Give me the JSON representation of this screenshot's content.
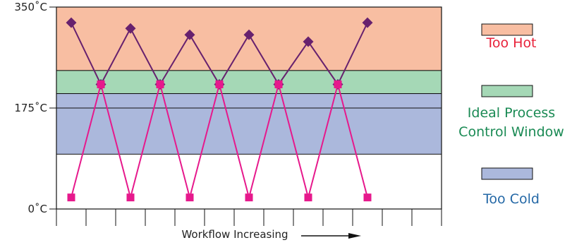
{
  "chart_data": {
    "type": "line",
    "title": "",
    "xlabel": "Workflow Increasing",
    "ylabel": "",
    "ylim": [
      0,
      350
    ],
    "yticks": [
      {
        "value": 350,
        "label": "350˚C"
      },
      {
        "value": 175,
        "label": "175˚C"
      },
      {
        "value": 0,
        "label": "0˚C"
      }
    ],
    "x_count": 13,
    "grid": false,
    "midline_value": 175,
    "bands": [
      {
        "name": "Too Hot",
        "from": 240,
        "to": 350,
        "color": "#f8bea2",
        "text_color": "#e8223a"
      },
      {
        "name": "Ideal Process Control Window",
        "from": 200,
        "to": 240,
        "color": "#a5d8b6",
        "text_color": "#1a8a54"
      },
      {
        "name": "Too Cold",
        "from": 95,
        "to": 200,
        "color": "#abb8dc",
        "text_color": "#2468a6"
      }
    ],
    "series": [
      {
        "color": "#67216e",
        "marker": "diamond",
        "points": [
          {
            "x": 0.5,
            "y": 323
          },
          {
            "x": 1.5,
            "y": 216
          },
          {
            "x": 2.5,
            "y": 313
          },
          {
            "x": 3.5,
            "y": 216
          },
          {
            "x": 4.5,
            "y": 302
          },
          {
            "x": 5.5,
            "y": 216
          },
          {
            "x": 6.5,
            "y": 302
          },
          {
            "x": 7.5,
            "y": 216
          },
          {
            "x": 8.5,
            "y": 290
          },
          {
            "x": 9.5,
            "y": 216
          },
          {
            "x": 10.5,
            "y": 323
          }
        ]
      },
      {
        "color": "#e6198c",
        "marker": "square",
        "points": [
          {
            "x": 0.5,
            "y": 20
          },
          {
            "x": 1.5,
            "y": 216
          },
          {
            "x": 2.5,
            "y": 20
          },
          {
            "x": 3.5,
            "y": 216
          },
          {
            "x": 4.5,
            "y": 20
          },
          {
            "x": 5.5,
            "y": 216
          },
          {
            "x": 6.5,
            "y": 20
          },
          {
            "x": 7.5,
            "y": 216
          },
          {
            "x": 8.5,
            "y": 20
          },
          {
            "x": 9.5,
            "y": 216
          },
          {
            "x": 10.5,
            "y": 20
          }
        ]
      }
    ],
    "legend": {
      "placement": "right",
      "entries": [
        {
          "label_lines": [
            "Too Hot"
          ],
          "swatch": "#f8bea2",
          "text_color": "#e8223a"
        },
        {
          "label_lines": [
            "Ideal Process",
            "Control Window"
          ],
          "swatch": "#a5d8b6",
          "text_color": "#1a8a54"
        },
        {
          "label_lines": [
            "Too Cold"
          ],
          "swatch": "#abb8dc",
          "text_color": "#2468a6"
        }
      ]
    }
  }
}
